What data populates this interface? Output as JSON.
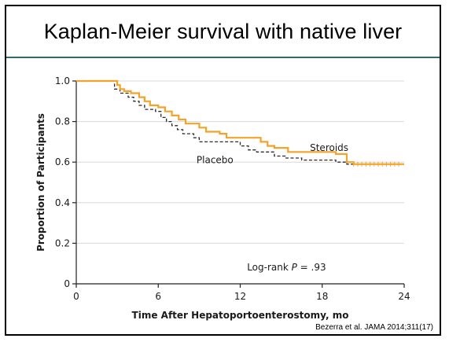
{
  "slide": {
    "title": "Kaplan-Meier survival with native liver",
    "citation": "Bezerra et al. JAMA 2014;311(17)"
  },
  "colors": {
    "steroids": "#f5a22b",
    "placebo": "#2b2b2b",
    "title_rule": "#2f6d6b",
    "grid": "#d9d9d9"
  },
  "chart_data": {
    "type": "line",
    "xlabel": "Time After Hepatoportoenterostomy, mo",
    "ylabel": "Proportion of Participants",
    "xlim": [
      0,
      24
    ],
    "ylim": [
      0,
      1.0
    ],
    "xticks": [
      0,
      6,
      12,
      18,
      24
    ],
    "yticks": [
      0,
      0.2,
      0.4,
      0.6,
      0.8,
      1.0
    ],
    "ytick_labels": [
      "0",
      "0.2",
      "0.4",
      "0.6",
      "0.8",
      "1.0"
    ],
    "grid": true,
    "series": [
      {
        "name": "Steroids",
        "style": "solid",
        "step": true,
        "points": [
          [
            0,
            1.0
          ],
          [
            3.0,
            0.98
          ],
          [
            3.2,
            0.96
          ],
          [
            3.5,
            0.95
          ],
          [
            4.0,
            0.94
          ],
          [
            4.6,
            0.92
          ],
          [
            5.0,
            0.9
          ],
          [
            5.4,
            0.88
          ],
          [
            6.0,
            0.87
          ],
          [
            6.5,
            0.85
          ],
          [
            7.0,
            0.83
          ],
          [
            7.5,
            0.81
          ],
          [
            8.0,
            0.79
          ],
          [
            9.0,
            0.77
          ],
          [
            9.5,
            0.75
          ],
          [
            10.5,
            0.74
          ],
          [
            11.0,
            0.72
          ],
          [
            13.5,
            0.7
          ],
          [
            14.0,
            0.68
          ],
          [
            14.5,
            0.67
          ],
          [
            15.5,
            0.65
          ],
          [
            19.0,
            0.64
          ],
          [
            19.8,
            0.6
          ],
          [
            20.3,
            0.59
          ],
          [
            24,
            0.59
          ]
        ]
      },
      {
        "name": "Placebo",
        "style": "dashed",
        "step": true,
        "points": [
          [
            0,
            1.0
          ],
          [
            2.8,
            0.96
          ],
          [
            3.2,
            0.94
          ],
          [
            3.8,
            0.92
          ],
          [
            4.2,
            0.9
          ],
          [
            4.6,
            0.88
          ],
          [
            5.0,
            0.86
          ],
          [
            5.8,
            0.85
          ],
          [
            6.2,
            0.82
          ],
          [
            6.6,
            0.8
          ],
          [
            7.0,
            0.78
          ],
          [
            7.4,
            0.76
          ],
          [
            7.8,
            0.74
          ],
          [
            8.6,
            0.72
          ],
          [
            9.0,
            0.7
          ],
          [
            12.0,
            0.68
          ],
          [
            12.6,
            0.66
          ],
          [
            13.2,
            0.65
          ],
          [
            14.5,
            0.63
          ],
          [
            15.3,
            0.62
          ],
          [
            16.5,
            0.61
          ],
          [
            19.0,
            0.6
          ],
          [
            19.8,
            0.59
          ],
          [
            24,
            0.59
          ]
        ]
      }
    ],
    "series_labels": [
      {
        "text": "Steroids",
        "x": 17.1,
        "y": 0.67
      },
      {
        "text": "Placebo",
        "x": 8.8,
        "y": 0.61
      }
    ],
    "annotation": {
      "prefix": "Log-rank ",
      "italic": "P",
      "suffix": " = .93"
    }
  }
}
